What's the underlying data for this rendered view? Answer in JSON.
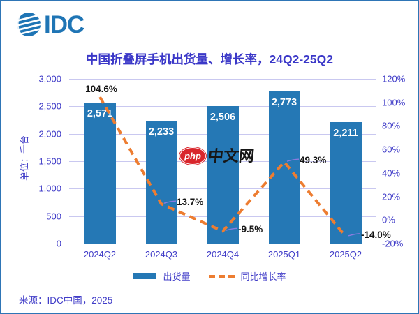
{
  "logo": {
    "text": "IDC",
    "icon": "globe-icon",
    "color": "#1f75b5"
  },
  "title": {
    "text": "中国折叠屏手机出货量、增长率，24Q2-25Q2"
  },
  "chart_data": {
    "type": "bar",
    "subtype": "combo-bar-line",
    "categories": [
      "2024Q2",
      "2024Q3",
      "2024Q4",
      "2025Q1",
      "2025Q2"
    ],
    "series": [
      {
        "name": "出货量",
        "type": "bar",
        "values": [
          2571,
          2233,
          2506,
          2773,
          2211
        ],
        "value_labels": [
          "2,571",
          "2,233",
          "2,506",
          "2,773",
          "2,211"
        ],
        "color": "#2578b5",
        "axis": "left"
      },
      {
        "name": "同比增长率",
        "type": "dashed-line",
        "values": [
          104.6,
          13.7,
          -9.5,
          49.3,
          -14.0
        ],
        "value_labels": [
          "104.6%",
          "13.7%",
          "-9.5%",
          "49.3%",
          "-14.0%"
        ],
        "label_side": [
          "above",
          "right",
          "right",
          "right",
          "right"
        ],
        "color": "#ed7d31",
        "axis": "right"
      }
    ],
    "left_axis": {
      "label": "单位：千台",
      "min": 0,
      "max": 3000,
      "step": 500,
      "tick_labels": [
        "0",
        "500",
        "1,000",
        "1,500",
        "2,000",
        "2,500",
        "3,000"
      ]
    },
    "right_axis": {
      "min": -20,
      "max": 120,
      "step": 20,
      "tick_labels": [
        "-20%",
        "0%",
        "20%",
        "40%",
        "60%",
        "80%",
        "100%",
        "120%"
      ]
    },
    "gridlines": true,
    "legend_position": "bottom"
  },
  "legend": {
    "items": [
      {
        "label": "出货量",
        "swatch": "bar",
        "color": "#2578b5"
      },
      {
        "label": "同比增长率",
        "swatch": "dashed-line",
        "color": "#ed7d31"
      }
    ]
  },
  "watermark": {
    "badge": "php",
    "text": "中文网",
    "badge_color": "#d9262c"
  },
  "source": {
    "text": "来源：IDC中国，2025"
  },
  "colors": {
    "brand_blue": "#2578b5",
    "accent_orange": "#ed7d31",
    "text_purple": "#413dc8",
    "gridline": "#c9c8f0",
    "leader_line": "#8b7be0",
    "border": "#2e75b6"
  }
}
